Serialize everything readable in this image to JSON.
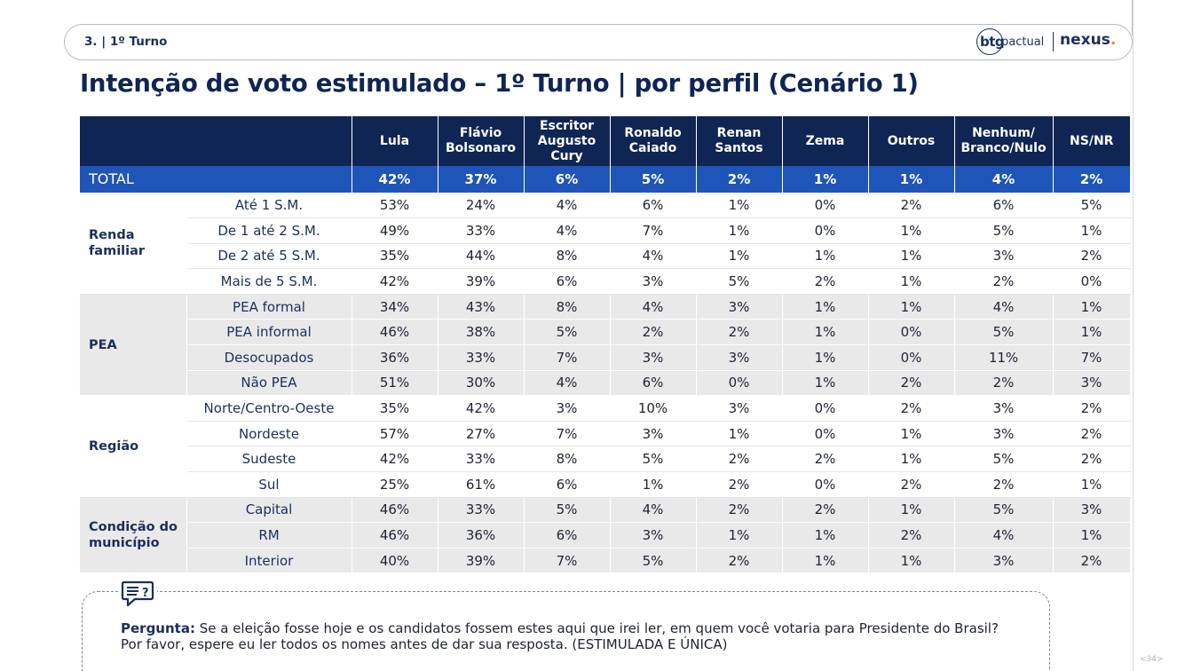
{
  "header": {
    "section": "3. | 1º Turno",
    "logo_btg": "btg",
    "logo_pactual": "pactual",
    "logo_nexus": "nexus",
    "logo_nexus_dot": "."
  },
  "title": "Intenção de voto estimulado – 1º Turno | por perfil (Cenário 1)",
  "table": {
    "columns": [
      "Lula",
      "Flávio Bolsonaro",
      "Escritor Augusto Cury",
      "Ronaldo Caiado",
      "Renan Santos",
      "Zema",
      "Outros",
      "Nenhum/ Branco/Nulo",
      "NS/NR"
    ],
    "total": {
      "label": "TOTAL",
      "values": [
        "42%",
        "37%",
        "6%",
        "5%",
        "2%",
        "1%",
        "1%",
        "4%",
        "2%"
      ]
    },
    "groups": [
      {
        "name": "Renda familiar",
        "rows": [
          {
            "label": "Até 1 S.M.",
            "values": [
              "53%",
              "24%",
              "4%",
              "6%",
              "1%",
              "0%",
              "2%",
              "6%",
              "5%"
            ]
          },
          {
            "label": "De 1 até 2 S.M.",
            "values": [
              "49%",
              "33%",
              "4%",
              "7%",
              "1%",
              "0%",
              "1%",
              "5%",
              "1%"
            ]
          },
          {
            "label": "De 2 até 5 S.M.",
            "values": [
              "35%",
              "44%",
              "8%",
              "4%",
              "1%",
              "1%",
              "1%",
              "3%",
              "2%"
            ]
          },
          {
            "label": "Mais de 5 S.M.",
            "values": [
              "42%",
              "39%",
              "6%",
              "3%",
              "5%",
              "2%",
              "1%",
              "2%",
              "0%"
            ]
          }
        ]
      },
      {
        "name": "PEA",
        "rows": [
          {
            "label": "PEA formal",
            "values": [
              "34%",
              "43%",
              "8%",
              "4%",
              "3%",
              "1%",
              "1%",
              "4%",
              "1%"
            ]
          },
          {
            "label": "PEA informal",
            "values": [
              "46%",
              "38%",
              "5%",
              "2%",
              "2%",
              "1%",
              "0%",
              "5%",
              "1%"
            ]
          },
          {
            "label": "Desocupados",
            "values": [
              "36%",
              "33%",
              "7%",
              "3%",
              "3%",
              "1%",
              "0%",
              "11%",
              "7%"
            ]
          },
          {
            "label": "Não PEA",
            "values": [
              "51%",
              "30%",
              "4%",
              "6%",
              "0%",
              "1%",
              "2%",
              "2%",
              "3%"
            ]
          }
        ]
      },
      {
        "name": "Região",
        "rows": [
          {
            "label": "Norte/Centro-Oeste",
            "values": [
              "35%",
              "42%",
              "3%",
              "10%",
              "3%",
              "0%",
              "2%",
              "3%",
              "2%"
            ]
          },
          {
            "label": "Nordeste",
            "values": [
              "57%",
              "27%",
              "7%",
              "3%",
              "1%",
              "0%",
              "1%",
              "3%",
              "2%"
            ]
          },
          {
            "label": "Sudeste",
            "values": [
              "42%",
              "33%",
              "8%",
              "5%",
              "2%",
              "2%",
              "1%",
              "5%",
              "2%"
            ]
          },
          {
            "label": "Sul",
            "values": [
              "25%",
              "61%",
              "6%",
              "1%",
              "2%",
              "0%",
              "2%",
              "2%",
              "1%"
            ]
          }
        ]
      },
      {
        "name": "Condição do município",
        "rows": [
          {
            "label": "Capital",
            "values": [
              "46%",
              "33%",
              "5%",
              "4%",
              "2%",
              "2%",
              "1%",
              "5%",
              "3%"
            ]
          },
          {
            "label": "RM",
            "values": [
              "46%",
              "36%",
              "6%",
              "3%",
              "1%",
              "1%",
              "2%",
              "4%",
              "1%"
            ]
          },
          {
            "label": "Interior",
            "values": [
              "40%",
              "39%",
              "7%",
              "5%",
              "2%",
              "1%",
              "1%",
              "3%",
              "2%"
            ]
          }
        ]
      }
    ]
  },
  "question": {
    "label": "Pergunta:",
    "line1": " Se a eleição fosse hoje e os candidatos fossem estes aqui que irei ler, em quem você votaria para Presidente do Brasil?",
    "line2": "Por favor, espere eu ler todos os nomes antes de dar sua resposta. (ESTIMULADA E ÚNICA)"
  },
  "page_number": "<34>",
  "icons": {
    "question": "speech-bubble-question-icon"
  }
}
